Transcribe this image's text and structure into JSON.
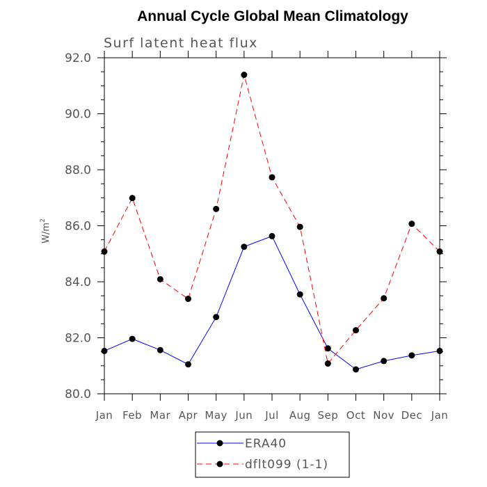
{
  "chart_data": {
    "type": "line",
    "title": "Annual Cycle Global Mean Climatology",
    "subtitle": "Surf latent heat flux",
    "ylabel": "W/m",
    "ylabel_superscript": "2",
    "categories": [
      "Jan",
      "Feb",
      "Mar",
      "Apr",
      "May",
      "Jun",
      "Jul",
      "Aug",
      "Sep",
      "Oct",
      "Nov",
      "Dec",
      "Jan"
    ],
    "ylim": [
      80.0,
      92.0
    ],
    "yticks": [
      "80.0",
      "82.0",
      "84.0",
      "86.0",
      "88.0",
      "90.0",
      "92.0"
    ],
    "grid": false,
    "legend_position": "bottom",
    "series": [
      {
        "name": "ERA40",
        "color": "#0000ff",
        "line_style": "solid",
        "marker": "filled-circle",
        "values": [
          81.53,
          81.96,
          81.56,
          81.05,
          82.74,
          85.25,
          85.63,
          83.55,
          81.62,
          80.87,
          81.17,
          81.37,
          81.53
        ]
      },
      {
        "name": "dflt099 (1-1)",
        "color": "#ff0000",
        "line_style": "dashed",
        "marker": "filled-circle",
        "values": [
          85.08,
          86.99,
          84.09,
          83.39,
          86.6,
          91.39,
          87.73,
          85.96,
          81.08,
          82.27,
          83.41,
          86.07,
          85.08
        ]
      }
    ]
  }
}
